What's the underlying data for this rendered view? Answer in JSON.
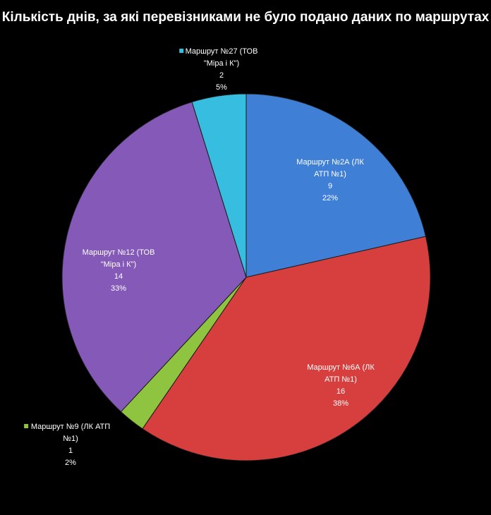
{
  "chart_data": {
    "type": "pie",
    "title": "Кількість днів, за які перевізниками не було подано даних по маршрутах",
    "slices": [
      {
        "label_lines": [
          "Маршрут №2А (ЛК",
          "АТП  №1)"
        ],
        "value": 9,
        "percent": "22%",
        "color": "#3f7fd6"
      },
      {
        "label_lines": [
          "Маршрут №6А (ЛК",
          "АТП  №1)"
        ],
        "value": 16,
        "percent": "38%",
        "color": "#d73f3f"
      },
      {
        "label_lines": [
          "Маршрут №9 (ЛК АТП",
          "№1)"
        ],
        "value": 1,
        "percent": "2%",
        "color": "#8fc440"
      },
      {
        "label_lines": [
          "Маршрут №12 (ТОВ",
          "\"Міра і К\")"
        ],
        "value": 14,
        "percent": "33%",
        "color": "#8459b8"
      },
      {
        "label_lines": [
          "Маршрут №27 (ТОВ",
          "\"Міра і К\")"
        ],
        "value": 2,
        "percent": "5%",
        "color": "#37bde0"
      }
    ],
    "start_angle": "12 o'clock",
    "direction": "clockwise",
    "legend": "none",
    "data_labels": "category name, value, percentage"
  }
}
